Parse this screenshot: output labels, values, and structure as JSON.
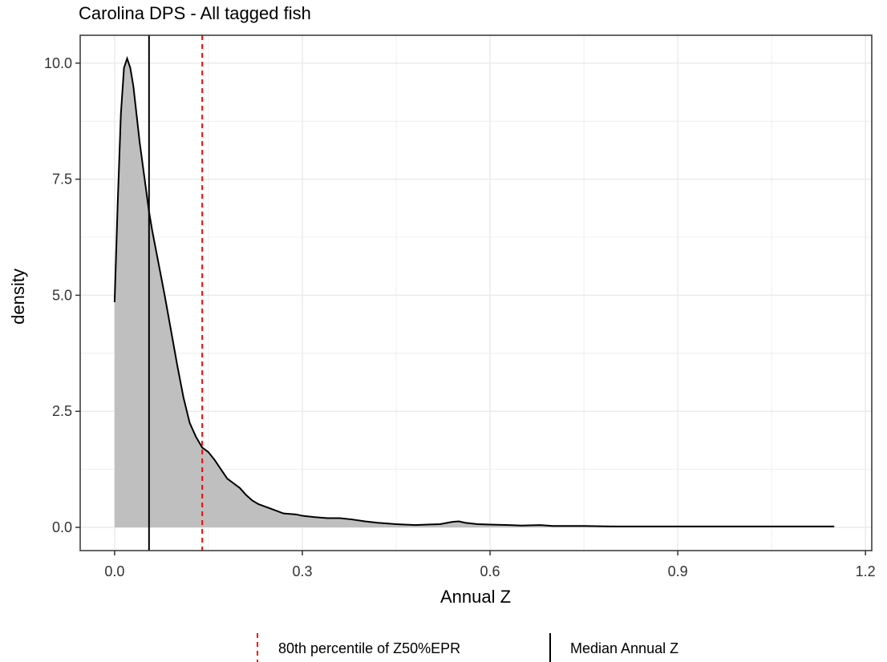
{
  "chart_data": {
    "type": "area",
    "title": "Carolina DPS - All tagged fish",
    "xlabel": "Annual Z",
    "ylabel": "density",
    "xlim": [
      -0.055,
      1.21
    ],
    "ylim": [
      -0.5,
      10.6
    ],
    "x_ticks": [
      0.0,
      0.3,
      0.6,
      0.9,
      1.2
    ],
    "x_tick_labels": [
      "0.0",
      "0.3",
      "0.6",
      "0.9",
      "1.2"
    ],
    "y_ticks": [
      0.0,
      2.5,
      5.0,
      7.5,
      10.0
    ],
    "y_tick_labels": [
      "0.0",
      "2.5",
      "5.0",
      "7.5",
      "10.0"
    ],
    "grid": true,
    "legend_position": "bottom",
    "series": [
      {
        "x": [
          0.0,
          0.005,
          0.01,
          0.015,
          0.02,
          0.025,
          0.03,
          0.035,
          0.04,
          0.045,
          0.05,
          0.055,
          0.06,
          0.07,
          0.08,
          0.09,
          0.1,
          0.11,
          0.12,
          0.13,
          0.14,
          0.15,
          0.16,
          0.17,
          0.18,
          0.19,
          0.2,
          0.21,
          0.22,
          0.23,
          0.24,
          0.25,
          0.27,
          0.29,
          0.3,
          0.32,
          0.34,
          0.36,
          0.38,
          0.4,
          0.42,
          0.45,
          0.48,
          0.5,
          0.52,
          0.54,
          0.55,
          0.56,
          0.58,
          0.6,
          0.63,
          0.65,
          0.68,
          0.7,
          0.75,
          0.8,
          0.9,
          1.0,
          1.1,
          1.15
        ],
        "values": [
          4.85,
          7.0,
          8.9,
          9.9,
          10.1,
          9.9,
          9.5,
          8.9,
          8.3,
          7.8,
          7.3,
          6.8,
          6.4,
          5.7,
          5.0,
          4.25,
          3.5,
          2.8,
          2.25,
          1.95,
          1.72,
          1.62,
          1.45,
          1.25,
          1.05,
          0.95,
          0.85,
          0.7,
          0.58,
          0.5,
          0.45,
          0.4,
          0.3,
          0.28,
          0.25,
          0.22,
          0.2,
          0.2,
          0.17,
          0.13,
          0.1,
          0.07,
          0.05,
          0.06,
          0.07,
          0.12,
          0.13,
          0.1,
          0.07,
          0.06,
          0.05,
          0.04,
          0.05,
          0.03,
          0.03,
          0.02,
          0.02,
          0.02,
          0.02,
          0.02
        ]
      }
    ],
    "vlines": [
      {
        "name": "80th percentile of Z50%EPR",
        "x": 0.14,
        "color": "#ff0000",
        "style": "dashed"
      },
      {
        "name": "Median Annual Z",
        "x": 0.055,
        "color": "#000000",
        "style": "solid"
      }
    ],
    "fill_color": "#bfbfbf",
    "line_color": "#000000",
    "grid_color": "#ebebeb"
  }
}
